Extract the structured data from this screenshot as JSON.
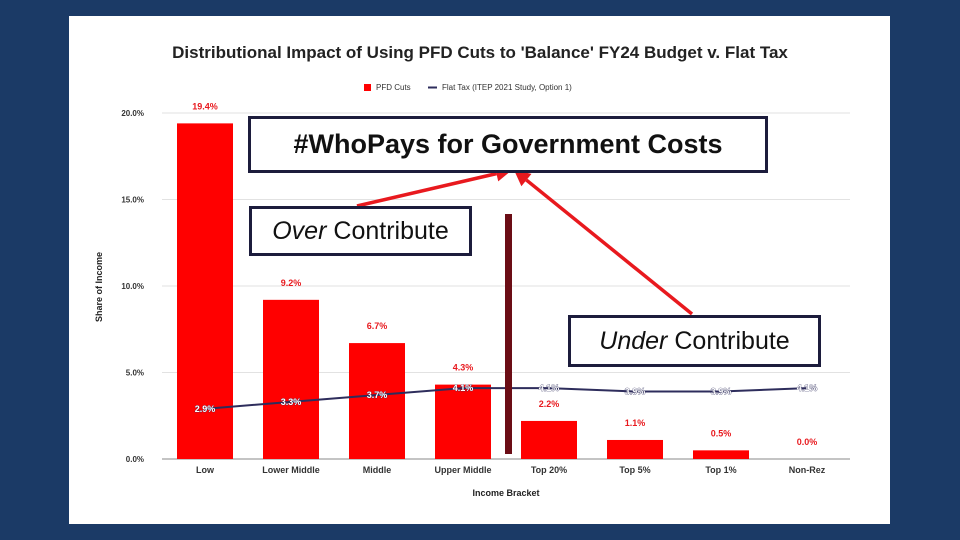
{
  "slide": {
    "background": "#1b3a66",
    "callouts": {
      "title": "#WhoPays for Government Costs",
      "over_italic": "Over",
      "over_rest": "Contribute",
      "under_italic": "Under",
      "under_rest": "Contribute"
    },
    "colors": {
      "arrow": "#e8191e",
      "divider": "#6b0d15"
    }
  },
  "chart_data": {
    "type": "bar",
    "title": "Distributional Impact of Using PFD Cuts to 'Balance' FY24 Budget v. Flat Tax",
    "xlabel": "Income Bracket",
    "ylabel": "Share of Income",
    "categories": [
      "Low",
      "Lower Middle",
      "Middle",
      "Upper Middle",
      "Top 20%",
      "Top 5%",
      "Top 1%",
      "Non-Rez"
    ],
    "ylim": [
      0,
      20
    ],
    "yticks": [
      "0.0%",
      "5.0%",
      "10.0%",
      "15.0%",
      "20.0%"
    ],
    "grid": true,
    "legend_position": "top",
    "series": [
      {
        "name": "PFD Cuts",
        "type": "bar",
        "color": "#ff0000",
        "values": [
          19.4,
          9.2,
          6.7,
          4.3,
          2.2,
          1.1,
          0.5,
          0.0
        ],
        "labels": [
          "19.4%",
          "9.2%",
          "6.7%",
          "4.3%",
          "2.2%",
          "1.1%",
          "0.5%",
          "0.0%"
        ]
      },
      {
        "name": "Flat Tax (ITEP 2021 Study, Option 1)",
        "type": "line",
        "color": "#2e2d5c",
        "values": [
          2.9,
          3.3,
          3.7,
          4.1,
          4.1,
          3.9,
          3.9,
          4.1
        ],
        "labels": [
          "2.9%",
          "3.3%",
          "3.7%",
          "4.1%",
          "4.1%",
          "3.9%",
          "3.9%",
          "4.1%"
        ]
      }
    ]
  }
}
